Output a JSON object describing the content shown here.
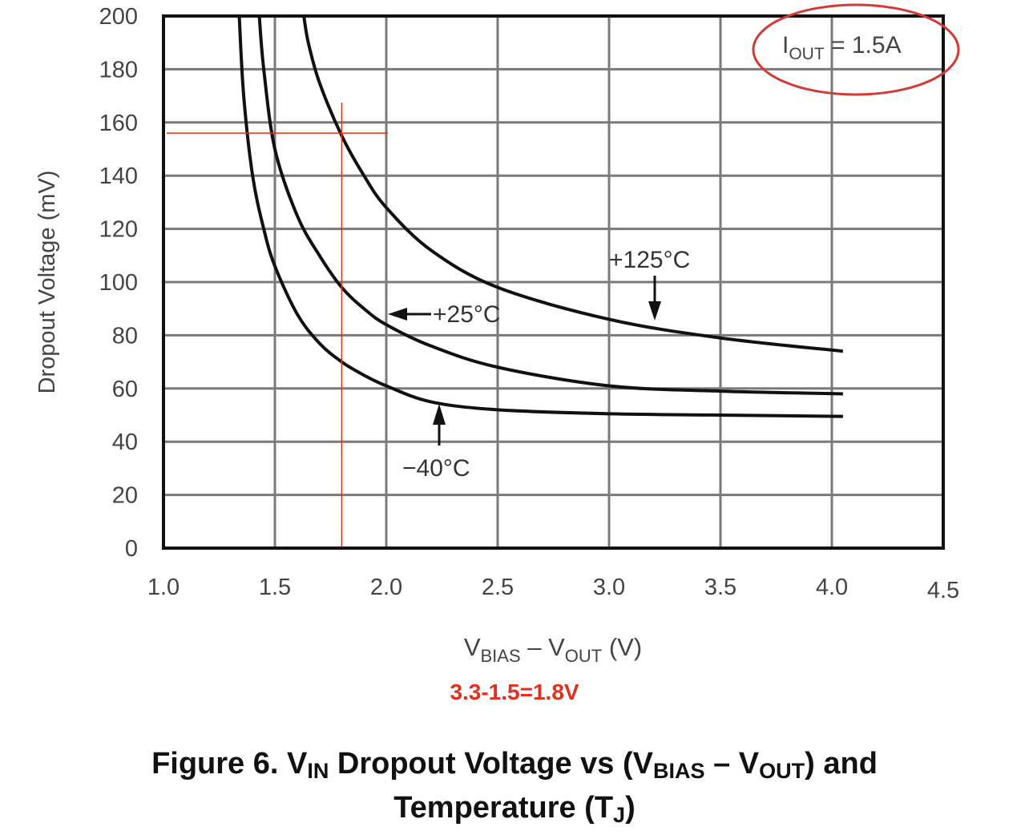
{
  "chart_data": {
    "type": "line",
    "xlabel": {
      "main": "V",
      "sub1": "BIAS",
      "mid": " – V",
      "sub2": "OUT",
      "tail": " (V)"
    },
    "ylabel": "Dropout Voltage (mV)",
    "xlim": [
      1.0,
      4.5
    ],
    "ylim": [
      0,
      200
    ],
    "xticks": [
      "1.0",
      "1.5",
      "2.0",
      "2.5",
      "3.0",
      "3.5",
      "4.0",
      "4.5"
    ],
    "yticks": [
      "0",
      "20",
      "40",
      "60",
      "80",
      "100",
      "120",
      "140",
      "160",
      "180",
      "200"
    ],
    "grid": true,
    "condition": {
      "pre": "I",
      "sub": "OUT",
      "post": " = 1.5A"
    },
    "series": [
      {
        "name": "−40°C",
        "x": [
          1.34,
          1.36,
          1.4,
          1.45,
          1.5,
          1.6,
          1.7,
          1.8,
          1.9,
          2.0,
          2.2,
          2.5,
          3.0,
          3.5,
          4.05
        ],
        "y": [
          200,
          170,
          140,
          120,
          106,
          88,
          77,
          70,
          65,
          61,
          55,
          52,
          50.5,
          50,
          49.5
        ]
      },
      {
        "name": "+25°C",
        "x": [
          1.43,
          1.45,
          1.5,
          1.6,
          1.7,
          1.8,
          1.9,
          2.0,
          2.2,
          2.5,
          3.0,
          3.5,
          4.05
        ],
        "y": [
          200,
          180,
          150,
          125,
          110,
          98,
          90,
          84,
          76,
          68,
          61,
          59,
          58
        ]
      },
      {
        "name": "+125°C",
        "x": [
          1.63,
          1.65,
          1.7,
          1.8,
          1.9,
          2.0,
          2.2,
          2.5,
          3.0,
          3.5,
          4.05
        ],
        "y": [
          200,
          190,
          175,
          155,
          140,
          128,
          112,
          98,
          86,
          79,
          74
        ]
      }
    ],
    "annotations": {
      "reference_x": 1.8,
      "reference_y": 156,
      "note": "3.3-1.5=1.8V"
    }
  },
  "caption": {
    "p1": "Figure 6. V",
    "s1": "IN",
    "p2": " Dropout Voltage vs (V",
    "s2": "BIAS",
    "p3": " – V",
    "s3": "OUT",
    "p4": ") and",
    "p5": "Temperature (T",
    "s4": "J",
    "p6": ")"
  },
  "colors": {
    "curve": "#111111",
    "grid": "#7a7a7a",
    "annotation": "#e0301e"
  }
}
